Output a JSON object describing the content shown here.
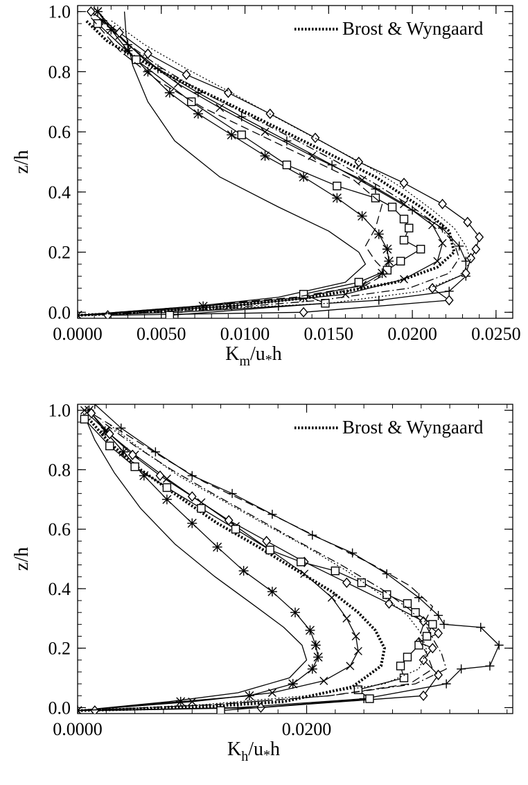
{
  "chart_data": [
    {
      "type": "line",
      "xlabel": "K_m/u_*h",
      "xlabel_main": "K",
      "xlabel_sub1": "m",
      "xlabel_mid": "/u",
      "xlabel_sub2": "*",
      "xlabel_end": "h",
      "ylabel": "z/h",
      "xlim": [
        0.0,
        0.026
      ],
      "ylim": [
        -0.02,
        1.02
      ],
      "x_ticks": [
        0.0,
        0.005,
        0.01,
        0.015,
        0.02,
        0.025
      ],
      "x_tick_labels": [
        "0.0000",
        "0.0050",
        "0.0100",
        "0.0150",
        "0.0200",
        "0.0250"
      ],
      "y_ticks": [
        0.0,
        0.2,
        0.4,
        0.6,
        0.8,
        1.0
      ],
      "y_tick_labels": [
        "0.0",
        "0.2",
        "0.4",
        "0.6",
        "0.8",
        "1.0"
      ],
      "legend": {
        "position": "top-right",
        "label": "Brost & Wyngaard"
      },
      "series": [
        {
          "name": "Brost & Wyngaard",
          "style": "thick-dotted",
          "marker": "none",
          "x": [
            0.0,
            0.004,
            0.009,
            0.014,
            0.019,
            0.0215,
            0.0225,
            0.0222,
            0.0205,
            0.0178,
            0.0142,
            0.0095,
            0.005,
            0.0018,
            0.0005
          ],
          "y": [
            -0.01,
            0.0,
            0.02,
            0.05,
            0.1,
            0.15,
            0.2,
            0.27,
            0.35,
            0.45,
            0.55,
            0.68,
            0.8,
            0.9,
            0.97
          ]
        },
        {
          "style": "solid",
          "marker": "none",
          "x": [
            0.0,
            0.007,
            0.012,
            0.016,
            0.0172,
            0.0168,
            0.015,
            0.012,
            0.0085,
            0.0058,
            0.0042,
            0.0033,
            0.0029,
            0.0028
          ],
          "y": [
            -0.01,
            0.02,
            0.05,
            0.1,
            0.16,
            0.2,
            0.27,
            0.35,
            0.45,
            0.57,
            0.7,
            0.82,
            0.92,
            1.0
          ]
        },
        {
          "style": "solid",
          "marker": "asterisk",
          "x": [
            0.0,
            0.0075,
            0.0135,
            0.017,
            0.0182,
            0.0186,
            0.0185,
            0.018,
            0.017,
            0.0155,
            0.0135,
            0.0112,
            0.0092,
            0.0072,
            0.0055,
            0.0042,
            0.003,
            0.002,
            0.0012
          ],
          "y": [
            -0.01,
            0.02,
            0.05,
            0.09,
            0.13,
            0.17,
            0.21,
            0.26,
            0.32,
            0.38,
            0.45,
            0.52,
            0.59,
            0.66,
            0.73,
            0.8,
            0.87,
            0.94,
            1.0
          ]
        },
        {
          "style": "solid",
          "marker": "x",
          "x": [
            0.0,
            0.009,
            0.016,
            0.0195,
            0.0215,
            0.0218,
            0.0212,
            0.0195,
            0.017,
            0.014,
            0.0112,
            0.0085,
            0.006,
            0.004,
            0.0025,
            0.0012
          ],
          "y": [
            -0.01,
            0.02,
            0.06,
            0.11,
            0.17,
            0.23,
            0.29,
            0.36,
            0.44,
            0.52,
            0.6,
            0.68,
            0.76,
            0.84,
            0.92,
            1.0
          ]
        },
        {
          "style": "solid",
          "marker": "plus",
          "x": [
            0.0,
            0.006,
            0.012,
            0.018,
            0.0222,
            0.0232,
            0.0232,
            0.0228,
            0.0218,
            0.02,
            0.0178,
            0.0152,
            0.0125,
            0.0098,
            0.0072,
            0.0048,
            0.003,
            0.0015
          ],
          "y": [
            -0.01,
            0.0,
            0.02,
            0.04,
            0.07,
            0.12,
            0.17,
            0.22,
            0.28,
            0.34,
            0.41,
            0.49,
            0.57,
            0.65,
            0.73,
            0.81,
            0.89,
            0.97
          ]
        },
        {
          "style": "solid",
          "marker": "diamond",
          "x": [
            0.0018,
            0.0135,
            0.0222,
            0.0212,
            0.0232,
            0.0235,
            0.0238,
            0.024,
            0.0233,
            0.0218,
            0.0195,
            0.0168,
            0.0142,
            0.0115,
            0.009,
            0.0065,
            0.0042,
            0.0025,
            0.0008
          ],
          "y": [
            -0.01,
            0.0,
            0.04,
            0.08,
            0.13,
            0.18,
            0.21,
            0.25,
            0.3,
            0.36,
            0.43,
            0.5,
            0.58,
            0.66,
            0.73,
            0.79,
            0.86,
            0.93,
            1.0
          ]
        },
        {
          "style": "solid",
          "marker": "square",
          "x": [
            0.0055,
            0.0148,
            0.0135,
            0.0168,
            0.0185,
            0.0193,
            0.0205,
            0.0195,
            0.0198,
            0.0195,
            0.0188,
            0.0178,
            0.0155,
            0.0125,
            0.0098,
            0.0068,
            0.0035,
            0.0012
          ],
          "y": [
            -0.01,
            0.03,
            0.06,
            0.1,
            0.14,
            0.17,
            0.21,
            0.24,
            0.28,
            0.31,
            0.35,
            0.38,
            0.42,
            0.49,
            0.59,
            0.7,
            0.84,
            0.96
          ]
        },
        {
          "style": "dashed",
          "marker": "none",
          "x": [
            0.0,
            0.007,
            0.013,
            0.0172,
            0.0185,
            0.0178,
            0.0172,
            0.0178,
            0.0182,
            0.0165,
            0.0135,
            0.0105,
            0.0075,
            0.0048,
            0.0025,
            0.0008
          ],
          "y": [
            -0.01,
            0.02,
            0.05,
            0.09,
            0.13,
            0.17,
            0.22,
            0.28,
            0.36,
            0.44,
            0.52,
            0.6,
            0.68,
            0.77,
            0.87,
            0.98
          ]
        },
        {
          "style": "dotted",
          "marker": "none",
          "x": [
            0.0,
            0.008,
            0.015,
            0.0205,
            0.0228,
            0.0235,
            0.0232,
            0.0225,
            0.0212,
            0.0195,
            0.0172,
            0.0145,
            0.0118,
            0.0092,
            0.0065,
            0.004,
            0.002
          ],
          "y": [
            -0.01,
            0.01,
            0.03,
            0.07,
            0.12,
            0.17,
            0.22,
            0.28,
            0.34,
            0.41,
            0.49,
            0.57,
            0.65,
            0.73,
            0.81,
            0.89,
            0.97
          ]
        },
        {
          "style": "dashdot",
          "marker": "none",
          "x": [
            0.0,
            0.008,
            0.0145,
            0.0198,
            0.0222,
            0.0228,
            0.0225,
            0.0215,
            0.02,
            0.018,
            0.0155,
            0.0128,
            0.01,
            0.0072,
            0.0048,
            0.0028,
            0.0012
          ],
          "y": [
            -0.01,
            0.01,
            0.04,
            0.08,
            0.13,
            0.18,
            0.23,
            0.29,
            0.35,
            0.42,
            0.5,
            0.58,
            0.66,
            0.74,
            0.82,
            0.9,
            0.98
          ]
        }
      ]
    },
    {
      "type": "line",
      "xlabel": "K_h/u_*h",
      "xlabel_main": "K",
      "xlabel_sub1": "h",
      "xlabel_mid": "/u",
      "xlabel_sub2": "*",
      "xlabel_end": "h",
      "ylabel": "z/h",
      "xlim": [
        0.0,
        0.038
      ],
      "ylim": [
        -0.02,
        1.02
      ],
      "x_ticks": [
        0.0,
        0.02
      ],
      "x_tick_labels": [
        "0.0000",
        "0.0200"
      ],
      "y_ticks": [
        0.0,
        0.2,
        0.4,
        0.6,
        0.8,
        1.0
      ],
      "y_tick_labels": [
        "0.0",
        "0.2",
        "0.4",
        "0.6",
        "0.8",
        "1.0"
      ],
      "legend": {
        "position": "top-right",
        "label": "Brost & Wyngaard"
      },
      "series": [
        {
          "name": "Brost & Wyngaard",
          "style": "thick-dotted",
          "marker": "none",
          "x": [
            0.0,
            0.01,
            0.018,
            0.024,
            0.0265,
            0.0268,
            0.026,
            0.0245,
            0.0222,
            0.0192,
            0.0158,
            0.0122,
            0.0088,
            0.0055,
            0.0028,
            0.001
          ],
          "y": [
            -0.01,
            0.0,
            0.02,
            0.07,
            0.14,
            0.2,
            0.26,
            0.32,
            0.39,
            0.46,
            0.54,
            0.62,
            0.71,
            0.8,
            0.89,
            0.97
          ]
        },
        {
          "style": "solid",
          "marker": "none",
          "x": [
            0.0,
            0.008,
            0.014,
            0.0185,
            0.02,
            0.0196,
            0.018,
            0.0152,
            0.012,
            0.0085,
            0.0055,
            0.0032,
            0.0015,
            0.0005
          ],
          "y": [
            -0.01,
            0.02,
            0.05,
            0.1,
            0.16,
            0.21,
            0.27,
            0.35,
            0.44,
            0.55,
            0.67,
            0.79,
            0.9,
            0.99
          ]
        },
        {
          "style": "solid",
          "marker": "asterisk",
          "x": [
            0.0,
            0.009,
            0.015,
            0.0188,
            0.0205,
            0.021,
            0.0208,
            0.0203,
            0.019,
            0.017,
            0.0145,
            0.0122,
            0.01,
            0.0078,
            0.0058,
            0.004,
            0.0024,
            0.001
          ],
          "y": [
            -0.01,
            0.02,
            0.04,
            0.08,
            0.13,
            0.17,
            0.21,
            0.26,
            0.32,
            0.39,
            0.46,
            0.54,
            0.62,
            0.7,
            0.78,
            0.86,
            0.93,
            1.0
          ]
        },
        {
          "style": "solid",
          "marker": "x",
          "x": [
            0.0,
            0.01,
            0.017,
            0.0215,
            0.0238,
            0.0245,
            0.0243,
            0.0235,
            0.0222,
            0.0198,
            0.0168,
            0.0138,
            0.0108,
            0.0078,
            0.005,
            0.0025,
            0.0006
          ],
          "y": [
            -0.01,
            0.02,
            0.05,
            0.09,
            0.14,
            0.19,
            0.24,
            0.3,
            0.37,
            0.45,
            0.53,
            0.61,
            0.69,
            0.77,
            0.85,
            0.93,
            1.0
          ]
        },
        {
          "style": "solid",
          "marker": "plus",
          "x": [
            0.0,
            0.014,
            0.025,
            0.0322,
            0.0335,
            0.036,
            0.0368,
            0.0352,
            0.032,
            0.0315,
            0.0298,
            0.027,
            0.024,
            0.0205,
            0.017,
            0.0135,
            0.01,
            0.0068,
            0.0038,
            0.0015
          ],
          "y": [
            -0.01,
            0.0,
            0.03,
            0.08,
            0.13,
            0.14,
            0.21,
            0.27,
            0.28,
            0.31,
            0.37,
            0.45,
            0.52,
            0.58,
            0.65,
            0.72,
            0.78,
            0.86,
            0.94,
            1.02
          ]
        },
        {
          "style": "solid",
          "marker": "diamond",
          "x": [
            0.0015,
            0.016,
            0.0302,
            0.0315,
            0.0302,
            0.031,
            0.0298,
            0.0315,
            0.0302,
            0.0272,
            0.0235,
            0.0198,
            0.0165,
            0.0132,
            0.01,
            0.0072,
            0.0048,
            0.0028,
            0.0012
          ],
          "y": [
            -0.01,
            0.0,
            0.04,
            0.11,
            0.16,
            0.2,
            0.22,
            0.25,
            0.29,
            0.35,
            0.42,
            0.49,
            0.56,
            0.63,
            0.71,
            0.78,
            0.85,
            0.92,
            0.99
          ]
        },
        {
          "style": "solid",
          "marker": "square",
          "x": [
            0.0125,
            0.0255,
            0.0245,
            0.0285,
            0.0282,
            0.0288,
            0.0298,
            0.0305,
            0.031,
            0.0295,
            0.0288,
            0.027,
            0.0248,
            0.0225,
            0.0195,
            0.0168,
            0.0138,
            0.0108,
            0.0078,
            0.005,
            0.0028,
            0.0006
          ],
          "y": [
            -0.01,
            0.03,
            0.06,
            0.1,
            0.14,
            0.17,
            0.21,
            0.24,
            0.28,
            0.32,
            0.35,
            0.38,
            0.42,
            0.46,
            0.49,
            0.53,
            0.6,
            0.67,
            0.74,
            0.81,
            0.88,
            0.97
          ]
        },
        {
          "style": "dashed",
          "marker": "none",
          "x": [
            0.0,
            0.012,
            0.022,
            0.029,
            0.031,
            0.0305,
            0.0298,
            0.0302,
            0.031,
            0.029,
            0.0258,
            0.0222,
            0.0185,
            0.0148,
            0.011,
            0.0075,
            0.0042,
            0.0012
          ],
          "y": [
            -0.01,
            0.01,
            0.04,
            0.08,
            0.13,
            0.18,
            0.23,
            0.28,
            0.34,
            0.41,
            0.48,
            0.55,
            0.62,
            0.69,
            0.76,
            0.84,
            0.92,
            0.99
          ]
        },
        {
          "style": "dotted",
          "marker": "none",
          "x": [
            0.0,
            0.011,
            0.02,
            0.0268,
            0.0298,
            0.0305,
            0.03,
            0.0288,
            0.0265,
            0.0235,
            0.02,
            0.0162,
            0.0125,
            0.0088,
            0.0055,
            0.0025
          ],
          "y": [
            -0.01,
            0.01,
            0.04,
            0.08,
            0.13,
            0.19,
            0.25,
            0.31,
            0.38,
            0.46,
            0.54,
            0.62,
            0.7,
            0.78,
            0.87,
            0.96
          ]
        },
        {
          "style": "dashdot",
          "marker": "none",
          "x": [
            0.0,
            0.012,
            0.022,
            0.0295,
            0.0322,
            0.0318,
            0.0312,
            0.0305,
            0.029,
            0.0265,
            0.023,
            0.0192,
            0.0155,
            0.0118,
            0.0082,
            0.005,
            0.0022
          ],
          "y": [
            -0.01,
            0.01,
            0.04,
            0.08,
            0.13,
            0.18,
            0.22,
            0.27,
            0.33,
            0.4,
            0.48,
            0.56,
            0.64,
            0.72,
            0.8,
            0.88,
            0.96
          ]
        }
      ]
    }
  ]
}
